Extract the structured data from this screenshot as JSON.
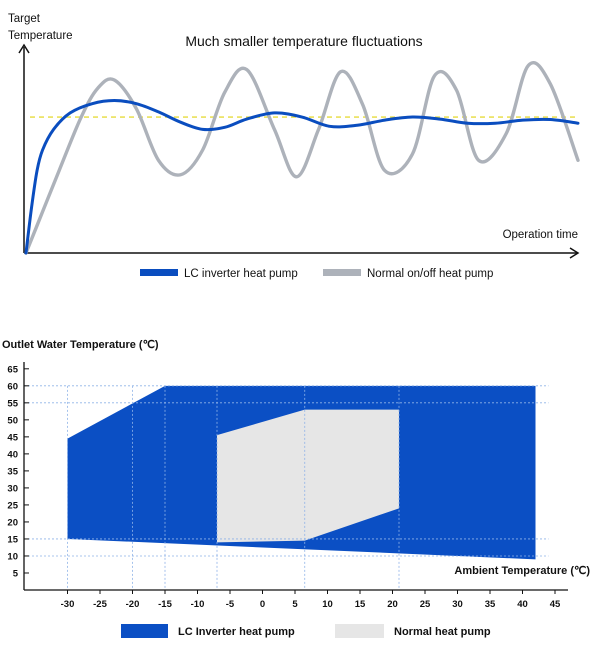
{
  "chart_data": [
    {
      "type": "line",
      "title": "Much smaller temperature fluctuations",
      "ylabel": "Target Temperature",
      "xlabel": "Operation time",
      "ylabel_lines": [
        "Target",
        "Temperature"
      ],
      "grid": false,
      "legend_position": "bottom",
      "target_level": 0.66,
      "ylim": [
        0,
        1
      ],
      "xlim": [
        0,
        1
      ],
      "colors": {
        "lc": "#0a4dbf",
        "normal": "#adb2ba",
        "target": "#e6dc3c"
      },
      "series": [
        {
          "name": "LC inverter heat pump",
          "x": [
            0,
            0.01,
            0.02,
            0.03,
            0.05,
            0.08,
            0.12,
            0.16,
            0.2,
            0.24,
            0.28,
            0.32,
            0.36,
            0.4,
            0.45,
            0.5,
            0.55,
            0.6,
            0.65,
            0.7,
            0.75,
            0.8,
            0.85,
            0.9,
            0.95,
            1.0
          ],
          "y": [
            0.0,
            0.22,
            0.4,
            0.5,
            0.6,
            0.68,
            0.725,
            0.74,
            0.725,
            0.685,
            0.635,
            0.6,
            0.61,
            0.65,
            0.68,
            0.66,
            0.615,
            0.62,
            0.645,
            0.66,
            0.65,
            0.63,
            0.63,
            0.645,
            0.648,
            0.63
          ]
        },
        {
          "name": "Normal on/off heat pump",
          "x": [
            0,
            0.03,
            0.06,
            0.1,
            0.13,
            0.16,
            0.2,
            0.24,
            0.28,
            0.32,
            0.36,
            0.4,
            0.45,
            0.49,
            0.53,
            0.57,
            0.61,
            0.65,
            0.7,
            0.74,
            0.78,
            0.82,
            0.87,
            0.91,
            0.95,
            1.0
          ],
          "y": [
            0.0,
            0.2,
            0.4,
            0.66,
            0.8,
            0.84,
            0.7,
            0.45,
            0.38,
            0.5,
            0.78,
            0.89,
            0.6,
            0.37,
            0.6,
            0.88,
            0.72,
            0.4,
            0.48,
            0.86,
            0.79,
            0.45,
            0.58,
            0.91,
            0.82,
            0.45
          ]
        }
      ]
    },
    {
      "type": "area",
      "title": "",
      "ylabel": "Outlet Water Temperature (℃)",
      "xlabel": "Ambient Temperature (℃)",
      "xlim": [
        -35,
        47
      ],
      "ylim": [
        0,
        67
      ],
      "x_ticks": [
        -30,
        -25,
        -20,
        -15,
        -10,
        -5,
        0,
        5,
        10,
        15,
        20,
        25,
        30,
        35,
        40,
        45
      ],
      "y_ticks": [
        5,
        10,
        15,
        20,
        25,
        30,
        35,
        40,
        45,
        50,
        55,
        60,
        65
      ],
      "grid": false,
      "legend_position": "bottom",
      "guide_x": [
        -30,
        -20,
        -15,
        -7,
        6.5,
        21
      ],
      "guide_y": [
        60,
        55,
        15,
        10
      ],
      "series": [
        {
          "name": "LC Inverter heat pump",
          "color": "#0b4fc4",
          "polygon": [
            [
              -30,
              44.5
            ],
            [
              -15,
              60
            ],
            [
              42,
              60
            ],
            [
              42,
              9
            ],
            [
              -30,
              15
            ]
          ]
        },
        {
          "name": "Normal heat pump",
          "color": "#e6e6e6",
          "polygon": [
            [
              -7,
              45.5
            ],
            [
              6.5,
              53
            ],
            [
              21,
              53
            ],
            [
              21,
              24
            ],
            [
              6.5,
              14.5
            ],
            [
              -7,
              14
            ]
          ]
        }
      ]
    }
  ]
}
